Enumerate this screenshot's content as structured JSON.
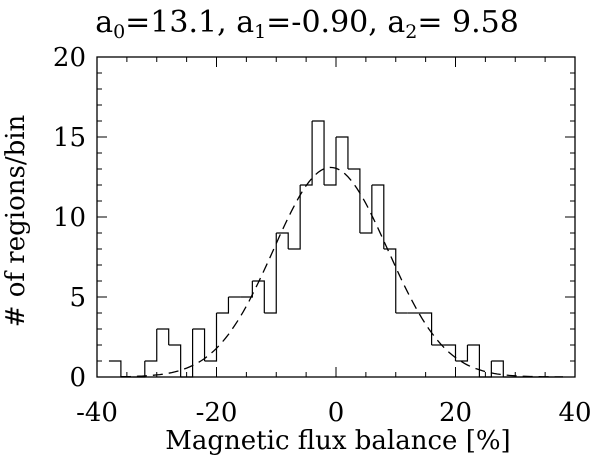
{
  "chart_data": {
    "type": "bar",
    "title": {
      "parts": [
        {
          "text": "a",
          "sub": "0",
          "after": "=13.1, "
        },
        {
          "text": "a",
          "sub": "1",
          "after": "=-0.90, "
        },
        {
          "text": "a",
          "sub": "2",
          "after": "= 9.58"
        }
      ]
    },
    "xlabel": "Magnetic flux balance [%]",
    "ylabel": "# of regions/bin",
    "xlim": [
      -40,
      40
    ],
    "ylim": [
      0,
      20
    ],
    "x_ticks": [
      -40,
      -20,
      0,
      20,
      40
    ],
    "y_ticks": [
      0,
      5,
      10,
      15,
      20
    ],
    "histogram": {
      "bin_width": 2,
      "bin_left_edges": [
        -38,
        -36,
        -34,
        -32,
        -30,
        -28,
        -26,
        -24,
        -22,
        -20,
        -18,
        -16,
        -14,
        -12,
        -10,
        -8,
        -6,
        -4,
        -2,
        0,
        2,
        4,
        6,
        8,
        10,
        12,
        14,
        16,
        18,
        20,
        22,
        24,
        26,
        28,
        30,
        32,
        34,
        36
      ],
      "counts": [
        1,
        0,
        0,
        1,
        3,
        2,
        0,
        3,
        1,
        4,
        5,
        5,
        6,
        4,
        9,
        8,
        12,
        16,
        12,
        15,
        13,
        9,
        12,
        8,
        4,
        4,
        4,
        2,
        2,
        1,
        2,
        0,
        1,
        0,
        0,
        0,
        0,
        0
      ]
    },
    "fit": {
      "model": "gaussian",
      "a0": 13.1,
      "a1": -0.9,
      "a2": 9.58,
      "style": "dashed"
    }
  }
}
